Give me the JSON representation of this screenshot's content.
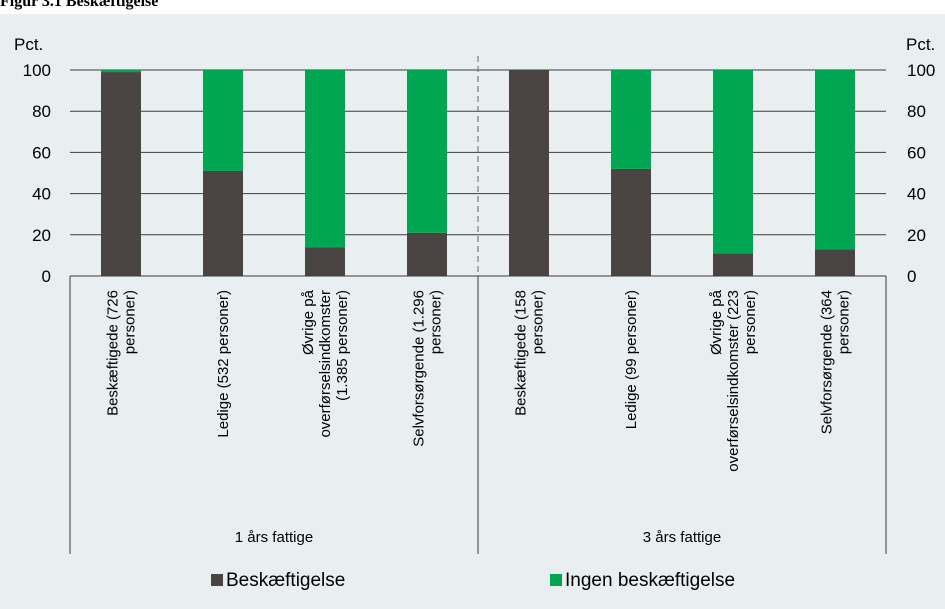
{
  "chart_data": {
    "type": "bar",
    "stacked": true,
    "y_unit_label_left": "Pct.",
    "y_unit_label_right": "Pct.",
    "ylim": [
      0,
      100
    ],
    "yticks": [
      0,
      20,
      40,
      60,
      80,
      100
    ],
    "grid": true,
    "legend_position": "bottom",
    "groups": [
      {
        "label": "1 års fattige",
        "categories": [
          "Beskæftigede (726 personer)",
          "Ledige (532 personer)",
          "Øvrige på overførselsindkomster (1.385 personer)",
          "Selvforsørgende (1.296 personer)"
        ]
      },
      {
        "label": "3 års fattige",
        "categories": [
          "Beskæftigede (158 personer)",
          "Ledige (99 personer)",
          "Øvrige på overførselsindkomster (223 personer)",
          "Selvforsørgende (364 personer)"
        ]
      }
    ],
    "category_label_lines": [
      [
        "Beskæftigede (726",
        "personer)"
      ],
      [
        "Ledige (532 personer)"
      ],
      [
        "Øvrige på",
        "overførselsindkomster",
        "(1.385 personer)"
      ],
      [
        "Selvforsørgende (1.296",
        "personer)"
      ],
      [
        "Beskæftigede (158",
        "personer)"
      ],
      [
        "Ledige (99 personer)"
      ],
      [
        "Øvrige på",
        "overførselsindkomster (223",
        "personer)"
      ],
      [
        "Selvforsørgende (364",
        "personer)"
      ]
    ],
    "series": [
      {
        "name": "Beskæftigelse",
        "color": "#4a4442",
        "values": [
          99,
          51,
          14,
          21,
          100,
          52,
          11,
          13
        ]
      },
      {
        "name": "Ingen beskæftigelse",
        "color": "#00a651",
        "values": [
          1,
          49,
          86,
          79,
          0,
          48,
          89,
          87
        ]
      }
    ]
  }
}
